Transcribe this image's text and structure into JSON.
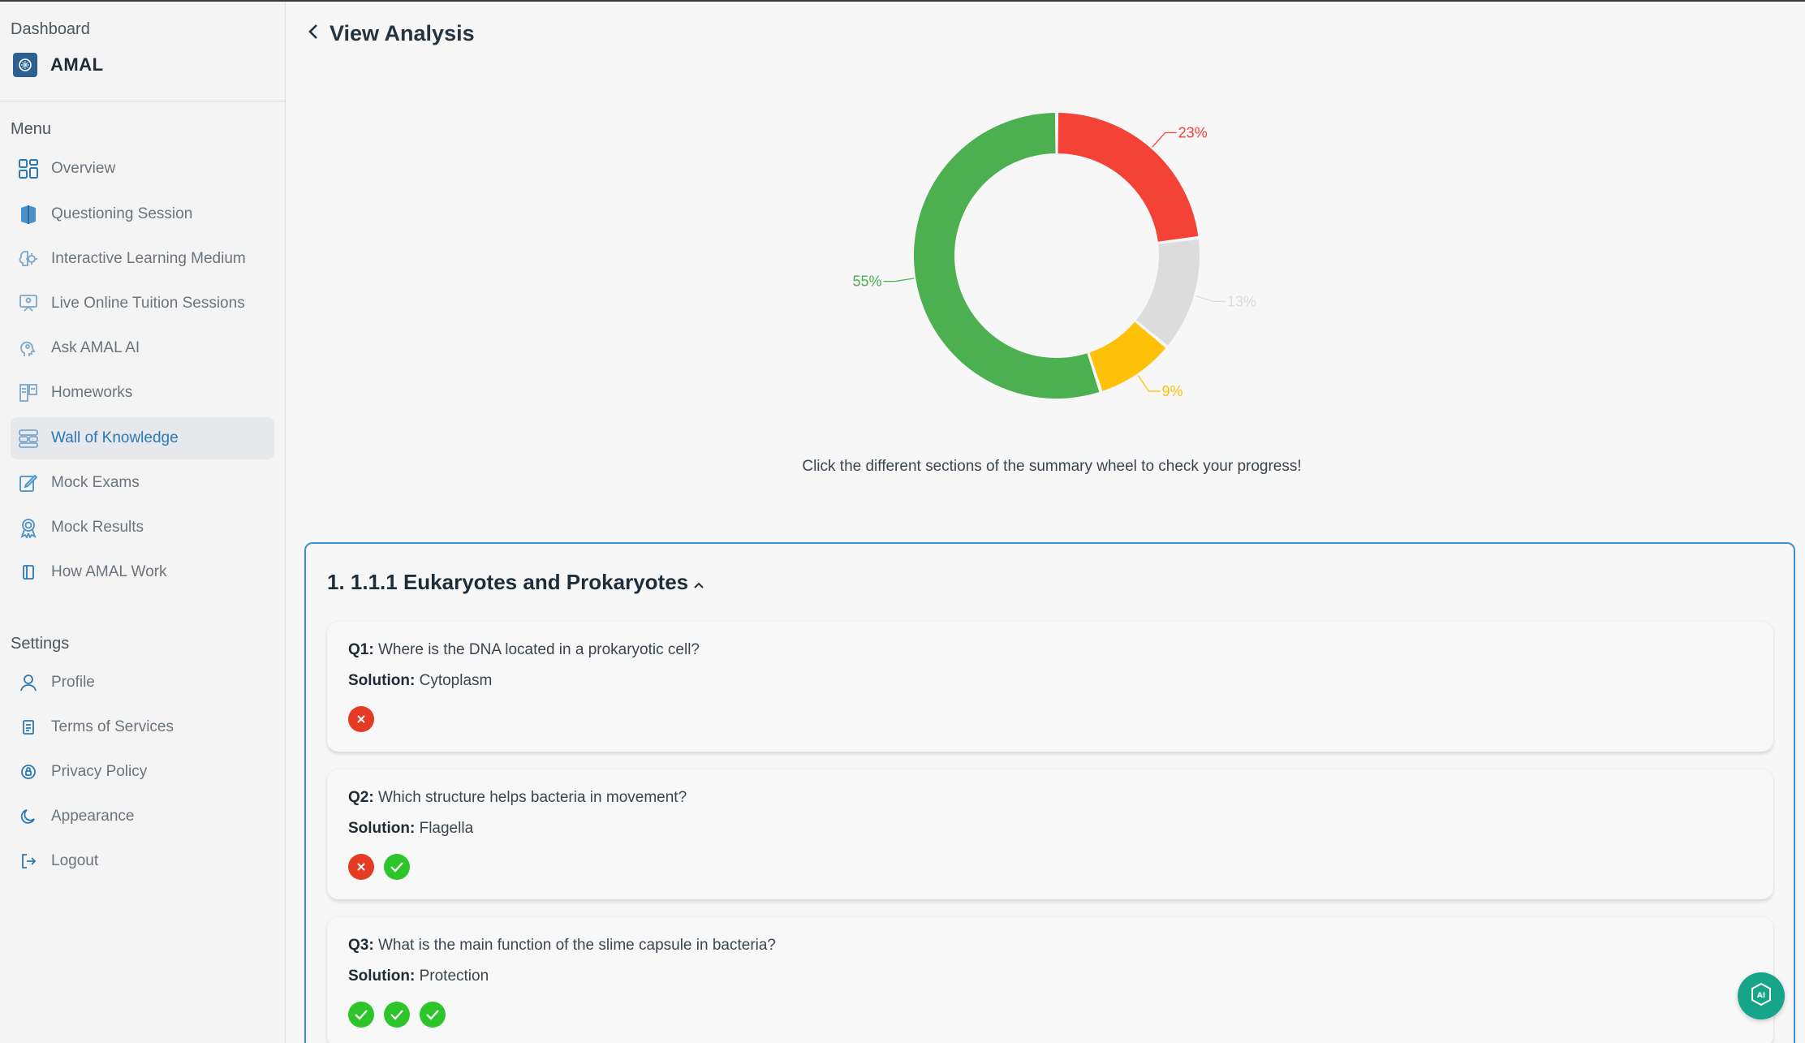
{
  "sidebar": {
    "dashboard_label": "Dashboard",
    "brand_name": "AMAL",
    "menu_label": "Menu",
    "settings_label": "Settings",
    "menu_items": [
      {
        "label": "Overview",
        "icon": "grid-icon"
      },
      {
        "label": "Questioning Session",
        "icon": "book-icon"
      },
      {
        "label": "Interactive Learning Medium",
        "icon": "brain-gear-icon"
      },
      {
        "label": "Live Online Tuition Sessions",
        "icon": "presentation-icon"
      },
      {
        "label": "Ask AMAL AI",
        "icon": "ai-head-icon"
      },
      {
        "label": "Homeworks",
        "icon": "homework-icon"
      },
      {
        "label": "Wall of Knowledge",
        "icon": "wall-icon",
        "active": true
      },
      {
        "label": "Mock Exams",
        "icon": "exam-pencil-icon"
      },
      {
        "label": "Mock Results",
        "icon": "award-icon"
      },
      {
        "label": "How AMAL Work",
        "icon": "notebook-icon"
      }
    ],
    "settings_items": [
      {
        "label": "Profile",
        "icon": "user-icon"
      },
      {
        "label": "Terms of Services",
        "icon": "document-icon"
      },
      {
        "label": "Privacy Policy",
        "icon": "lock-icon"
      },
      {
        "label": "Appearance",
        "icon": "moon-icon"
      },
      {
        "label": "Logout",
        "icon": "logout-icon"
      }
    ]
  },
  "header": {
    "title": "View Analysis"
  },
  "chart_data": {
    "type": "pie",
    "variant": "donut",
    "slices": [
      {
        "label": "23%",
        "value": 23,
        "color": "#f44336"
      },
      {
        "label": "13%",
        "value": 13,
        "color": "#dcdcdc"
      },
      {
        "label": "9%",
        "value": 9,
        "color": "#ffc107"
      },
      {
        "label": "55%",
        "value": 55,
        "color": "#4caf50"
      }
    ]
  },
  "caption": "Click the different sections of the summary wheel to check your progress!",
  "topic": {
    "title": "1. 1.1.1 Eukaryotes and Prokaryotes",
    "questions": [
      {
        "num": "Q1:",
        "text": "Where is the DNA located in a prokaryotic cell?",
        "solution_label": "Solution:",
        "solution": "Cytoplasm",
        "attempts": [
          "wrong"
        ]
      },
      {
        "num": "Q2:",
        "text": "Which structure helps bacteria in movement?",
        "solution_label": "Solution:",
        "solution": "Flagella",
        "attempts": [
          "wrong",
          "right"
        ]
      },
      {
        "num": "Q3:",
        "text": "What is the main function of the slime capsule in bacteria?",
        "solution_label": "Solution:",
        "solution": "Protection",
        "attempts": [
          "right",
          "right",
          "right"
        ]
      }
    ]
  },
  "colors": {
    "accent": "#2a78b6",
    "correct": "#2ec52b",
    "incorrect": "#e53a23",
    "panel_border": "#3a8ed6"
  }
}
